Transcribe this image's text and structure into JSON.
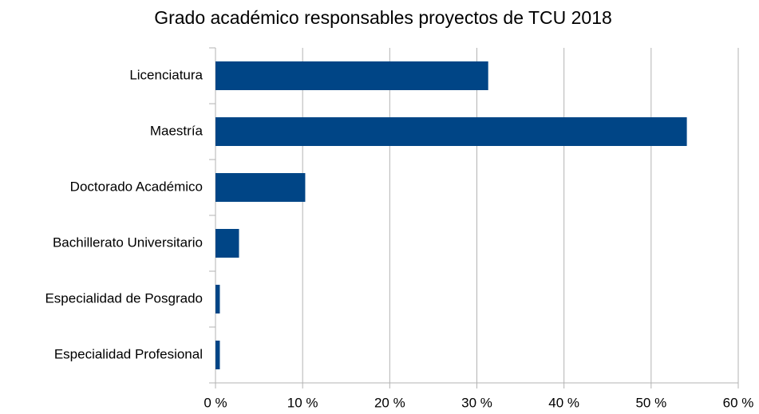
{
  "chart_data": {
    "type": "bar",
    "orientation": "horizontal",
    "title": "Grado académico responsables proyectos de TCU 2018",
    "categories": [
      "Licenciatura",
      "Maestría",
      "Doctorado Académico",
      "Bachillerato Universitario",
      "Especialidad de Posgrado",
      "Especialidad Profesional"
    ],
    "values": [
      31.3,
      54.1,
      10.3,
      2.7,
      0.5,
      0.5
    ],
    "color": "#004586",
    "xlim": [
      0,
      60
    ],
    "xticks": [
      {
        "value": 0,
        "label": "0 %"
      },
      {
        "value": 10,
        "label": "10 %"
      },
      {
        "value": 20,
        "label": "20 %"
      },
      {
        "value": 30,
        "label": "30 %"
      },
      {
        "value": 40,
        "label": "40 %"
      },
      {
        "value": 50,
        "label": "50 %"
      },
      {
        "value": 60,
        "label": "60 %"
      }
    ],
    "grid": true
  }
}
